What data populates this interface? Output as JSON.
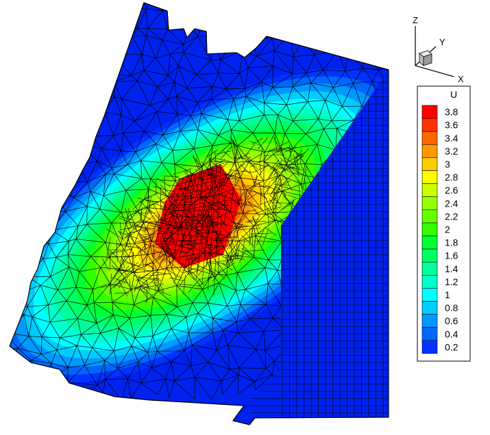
{
  "axes_triad": {
    "x_label": "X",
    "y_label": "Y",
    "z_label": "Z"
  },
  "legend": {
    "title": "U",
    "levels": [
      "3.8",
      "3.6",
      "3.4",
      "3.2",
      "3",
      "2.8",
      "2.6",
      "2.4",
      "2.2",
      "2",
      "1.8",
      "1.6",
      "1.4",
      "1.2",
      "1",
      "0.8",
      "0.6",
      "0.4",
      "0.2"
    ],
    "colors": [
      "#ff0000",
      "#ff3300",
      "#ff6600",
      "#ff9900",
      "#ffcc00",
      "#ffff00",
      "#ccff00",
      "#99ff00",
      "#66ff00",
      "#33ff00",
      "#00ff33",
      "#00ff66",
      "#00ff99",
      "#00ffcc",
      "#00ffff",
      "#00ccff",
      "#0099ff",
      "#0066ff",
      "#0033ff"
    ]
  },
  "contour": {
    "background_color": "#ffffff",
    "base_color": "#0022ee",
    "mesh_color": "#000000"
  }
}
